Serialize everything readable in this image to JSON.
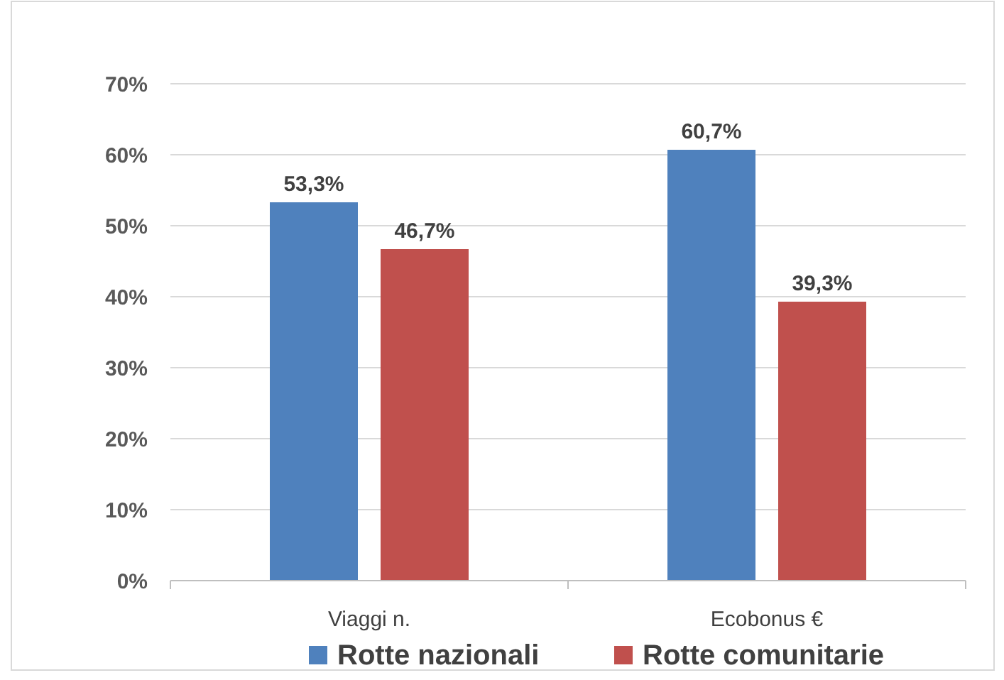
{
  "chart_data": {
    "type": "bar",
    "categories": [
      "Viaggi n.",
      "Ecobonus €"
    ],
    "series": [
      {
        "name": "Rotte nazionali",
        "color": "#4f81bd",
        "values": [
          53.3,
          60.7
        ],
        "value_labels": [
          "53,3%",
          "60,7%"
        ]
      },
      {
        "name": "Rotte comunitarie",
        "color": "#c0504d",
        "values": [
          46.7,
          39.3
        ],
        "value_labels": [
          "46,7%",
          "39,3%"
        ]
      }
    ],
    "ylim": [
      0,
      70
    ],
    "yticks": [
      {
        "value": 0,
        "label": "0%"
      },
      {
        "value": 10,
        "label": "10%"
      },
      {
        "value": 20,
        "label": "20%"
      },
      {
        "value": 30,
        "label": "30%"
      },
      {
        "value": 40,
        "label": "40%"
      },
      {
        "value": 50,
        "label": "50%"
      },
      {
        "value": 60,
        "label": "60%"
      },
      {
        "value": 70,
        "label": "70%"
      }
    ],
    "grid": "y",
    "legend": "bottom"
  }
}
